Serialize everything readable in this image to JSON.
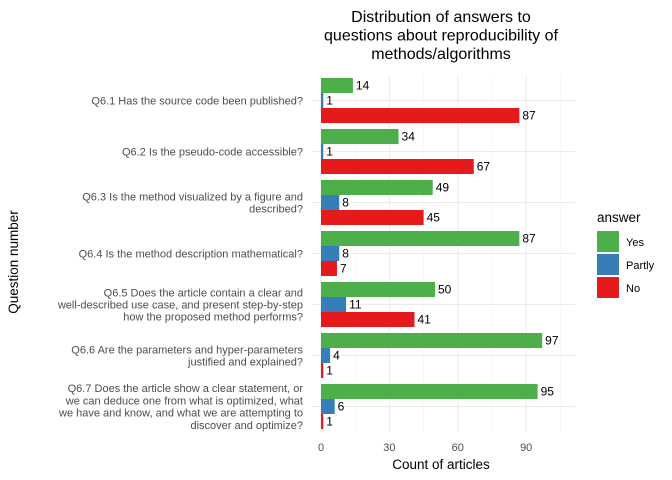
{
  "chart_data": {
    "type": "bar",
    "orientation": "horizontal",
    "title": "Distribution of answers to questions about reproducibility of methods/algorithms",
    "title_lines": [
      "Distribution of answers to",
      "questions about reproducibility of",
      "methods/algorithms"
    ],
    "xlabel": "Count of articles",
    "ylabel": "Question number",
    "xlim": [
      0,
      110
    ],
    "xticks": [
      0,
      30,
      60,
      90
    ],
    "categories": [
      "Q6.1 Has the source code been published?",
      "Q6.2 Is the pseudo-code accessible?",
      "Q6.3 Is the method visualized by a figure and described?",
      "Q6.4 Is the method description mathematical?",
      "Q6.5 Does the article contain a clear and well-described use case, and present step-by-step how the proposed method performs?",
      "Q6.6 Are the parameters and hyper-parameters justified and explained?",
      "Q6.7 Does the article show a clear statement, or we can deduce one from what is optimized, what we have and know, and what we are attempting to discover and optimize?"
    ],
    "category_lines": [
      [
        "Q6.1 Has the source code been published?"
      ],
      [
        "Q6.2 Is the pseudo-code accessible?"
      ],
      [
        "Q6.3 Is the method visualized by a figure and",
        "described?"
      ],
      [
        "Q6.4 Is the method description mathematical?"
      ],
      [
        "Q6.5 Does the article contain a clear and",
        "well-described use case, and present step-by-step",
        "how the proposed method performs?"
      ],
      [
        "Q6.6 Are the parameters and hyper-parameters",
        "justified and explained?"
      ],
      [
        "Q6.7 Does the article show a clear statement, or",
        "we can deduce one from what is optimized, what",
        "we have and know, and what we are attempting to",
        "discover and optimize?"
      ]
    ],
    "series": [
      {
        "name": "Yes",
        "color": "#4daf4a",
        "values": [
          14,
          34,
          49,
          87,
          50,
          97,
          95
        ]
      },
      {
        "name": "Partly",
        "color": "#377eb8",
        "values": [
          1,
          1,
          8,
          8,
          11,
          4,
          6
        ]
      },
      {
        "name": "No",
        "color": "#e41a1c",
        "values": [
          87,
          67,
          45,
          7,
          41,
          1,
          1
        ]
      }
    ],
    "legend": {
      "title": "answer",
      "position": "right"
    },
    "grid": true
  }
}
